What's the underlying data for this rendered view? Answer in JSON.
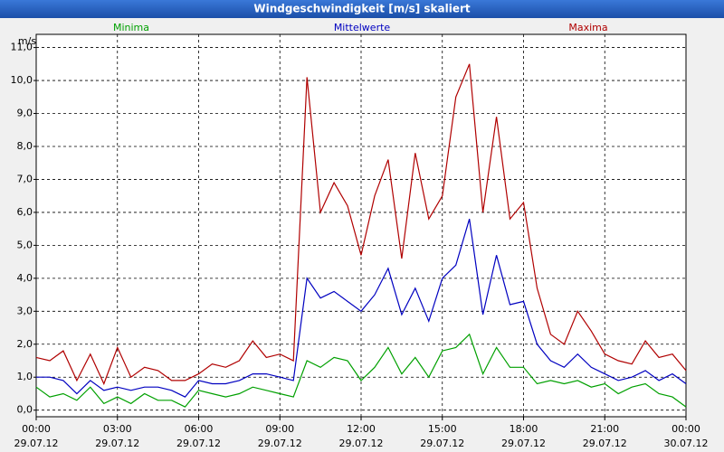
{
  "chart_data": {
    "type": "line",
    "title": "Windgeschwindigkeit [m/s] skaliert",
    "y_unit": "m/s",
    "grid": true,
    "x": [
      0,
      0.5,
      1,
      1.5,
      2,
      2.5,
      3,
      3.5,
      4,
      4.5,
      5,
      5.5,
      6,
      6.5,
      7,
      7.5,
      8,
      8.5,
      9,
      9.5,
      10,
      10.5,
      11,
      11.5,
      12,
      12.5,
      13,
      13.5,
      14,
      14.5,
      15,
      15.5,
      16,
      16.5,
      17,
      17.5,
      18,
      18.5,
      19,
      19.5,
      20,
      20.5,
      21,
      21.5,
      22,
      22.5,
      23,
      23.5,
      24
    ],
    "series": [
      {
        "name": "Minima",
        "color": "#00a000",
        "values": [
          0.7,
          0.4,
          0.5,
          0.3,
          0.7,
          0.2,
          0.4,
          0.2,
          0.5,
          0.3,
          0.3,
          0.1,
          0.6,
          0.5,
          0.4,
          0.5,
          0.7,
          0.6,
          0.5,
          0.4,
          1.5,
          1.3,
          1.6,
          1.5,
          0.9,
          1.3,
          1.9,
          1.1,
          1.6,
          1.0,
          1.8,
          1.9,
          2.3,
          1.1,
          1.9,
          1.3,
          1.3,
          0.8,
          0.9,
          0.8,
          0.9,
          0.7,
          0.8,
          0.5,
          0.7,
          0.8,
          0.5,
          0.4,
          0.1
        ]
      },
      {
        "name": "Mittelwerte",
        "color": "#0000c0",
        "values": [
          1.0,
          1.0,
          0.9,
          0.5,
          0.9,
          0.6,
          0.7,
          0.6,
          0.7,
          0.7,
          0.6,
          0.4,
          0.9,
          0.8,
          0.8,
          0.9,
          1.1,
          1.1,
          1.0,
          0.9,
          4.0,
          3.4,
          3.6,
          3.3,
          3.0,
          3.5,
          4.3,
          2.9,
          3.7,
          2.7,
          4.0,
          4.4,
          5.8,
          2.9,
          4.7,
          3.2,
          3.3,
          2.0,
          1.5,
          1.3,
          1.7,
          1.3,
          1.1,
          0.9,
          1.0,
          1.2,
          0.9,
          1.1,
          0.8
        ]
      },
      {
        "name": "Maxima",
        "color": "#b00000",
        "values": [
          1.6,
          1.5,
          1.8,
          0.9,
          1.7,
          0.8,
          1.9,
          1.0,
          1.3,
          1.2,
          0.9,
          0.9,
          1.1,
          1.4,
          1.3,
          1.5,
          2.1,
          1.6,
          1.7,
          1.5,
          10.1,
          6.0,
          6.9,
          6.2,
          4.7,
          6.5,
          7.6,
          4.6,
          7.8,
          5.8,
          6.5,
          9.5,
          10.5,
          6.0,
          8.9,
          5.8,
          6.3,
          3.7,
          2.3,
          2.0,
          3.0,
          2.4,
          1.7,
          1.5,
          1.4,
          2.1,
          1.6,
          1.7,
          1.2
        ]
      }
    ],
    "xlim": [
      0,
      24
    ],
    "ylim": [
      -0.2,
      11.4
    ],
    "xticks": [
      {
        "value": 0,
        "label": "00:00",
        "date": "29.07.12"
      },
      {
        "value": 3,
        "label": "03:00",
        "date": "29.07.12"
      },
      {
        "value": 6,
        "label": "06:00",
        "date": "29.07.12"
      },
      {
        "value": 9,
        "label": "09:00",
        "date": "29.07.12"
      },
      {
        "value": 12,
        "label": "12:00",
        "date": "29.07.12"
      },
      {
        "value": 15,
        "label": "15:00",
        "date": "29.07.12"
      },
      {
        "value": 18,
        "label": "18:00",
        "date": "29.07.12"
      },
      {
        "value": 21,
        "label": "21:00",
        "date": "29.07.12"
      },
      {
        "value": 24,
        "label": "00:00",
        "date": "30.07.12"
      }
    ],
    "yticks": [
      {
        "value": 0,
        "label": "0,0"
      },
      {
        "value": 1,
        "label": "1,0"
      },
      {
        "value": 2,
        "label": "2,0"
      },
      {
        "value": 3,
        "label": "3,0"
      },
      {
        "value": 4,
        "label": "4,0"
      },
      {
        "value": 5,
        "label": "5,0"
      },
      {
        "value": 6,
        "label": "6,0"
      },
      {
        "value": 7,
        "label": "7,0"
      },
      {
        "value": 8,
        "label": "8,0"
      },
      {
        "value": 9,
        "label": "9,0"
      },
      {
        "value": 10,
        "label": "10,0"
      },
      {
        "value": 11,
        "label": "11,0"
      }
    ]
  }
}
